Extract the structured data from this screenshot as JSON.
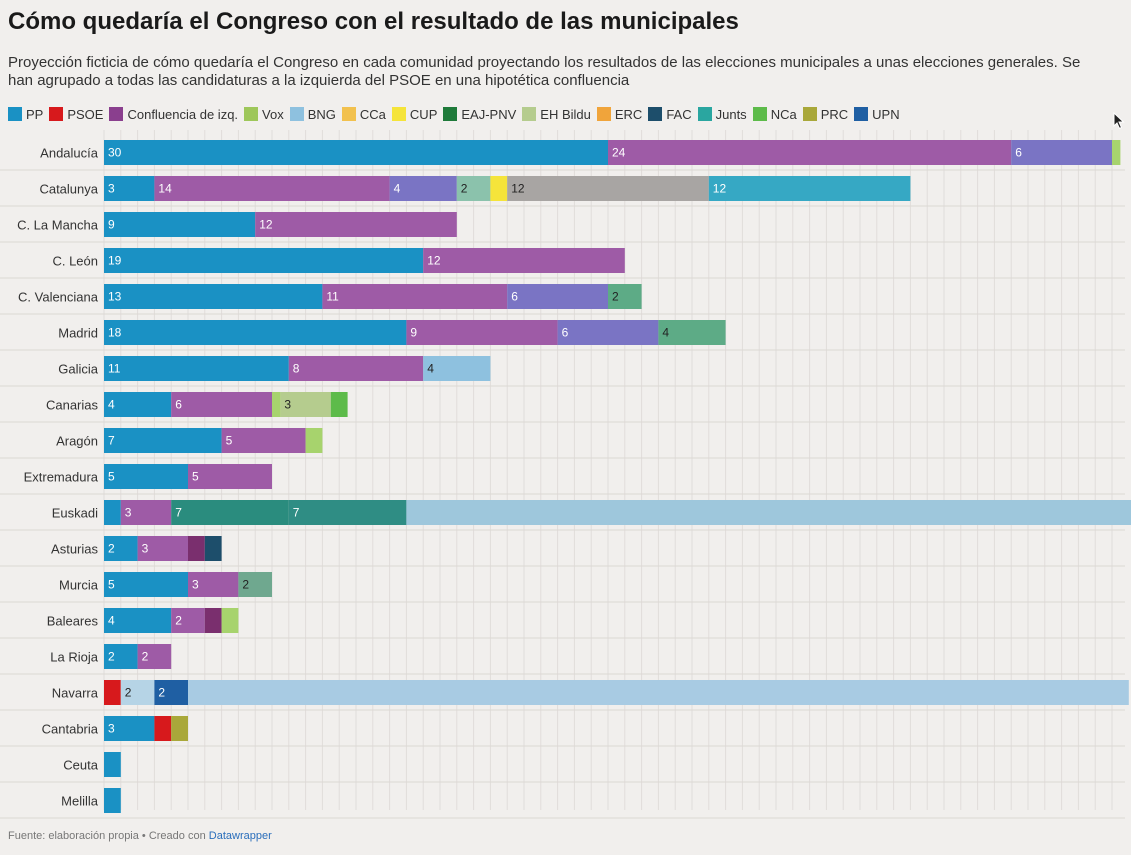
{
  "chart_data": {
    "type": "bar",
    "orientation": "horizontal",
    "stacked": true,
    "title": "Cómo quedaría el Congreso con el resultado de las municipales",
    "subtitle": "Proyección ficticia de cómo quedaría el Congreso en cada comunidad proyectando los resultados de las elecciones municipales a unas elecciones generales. Se han agrupado a todas las candidaturas a la izquierda del PSOE en una hipotética confluencia",
    "legend_position": "top",
    "grid": true,
    "series": [
      {
        "name": "PP",
        "color": "#1a91c4"
      },
      {
        "name": "PSOE",
        "color": "#d7191c"
      },
      {
        "name": "Confluencia de izq.",
        "color": "#8a3f8e"
      },
      {
        "name": "Vox",
        "color": "#9ec75a"
      },
      {
        "name": "BNG",
        "color": "#8ec1df"
      },
      {
        "name": "CCa",
        "color": "#f2c14e"
      },
      {
        "name": "CUP",
        "color": "#f5e43a"
      },
      {
        "name": "EAJ-PNV",
        "color": "#1f7a3a"
      },
      {
        "name": "EH Bildu",
        "color": "#b5cc8e"
      },
      {
        "name": "ERC",
        "color": "#f0a43b"
      },
      {
        "name": "FAC",
        "color": "#1d4e6b"
      },
      {
        "name": "Junts",
        "color": "#2aa6a0"
      },
      {
        "name": "NCa",
        "color": "#5dbb4a"
      },
      {
        "name": "PRC",
        "color": "#a9a83a"
      },
      {
        "name": "UPN",
        "color": "#1f5fa3"
      }
    ],
    "bars": [
      {
        "category": "Andalucía",
        "segments": [
          {
            "color": "#1a91c4",
            "value": 30,
            "label": "30",
            "lc": "#ffffff"
          },
          {
            "color": "#9e5ba6",
            "value": 24,
            "label": "24",
            "lc": "#ffffff"
          },
          {
            "color": "#7a74c4",
            "value": 6,
            "label": "6",
            "lc": "#ffffff"
          },
          {
            "color": "#a7d36d",
            "value": 0.5,
            "label": "",
            "lc": "#ffffff"
          }
        ]
      },
      {
        "category": "Catalunya",
        "segments": [
          {
            "color": "#1a91c4",
            "value": 3,
            "label": "3",
            "lc": "#ffffff"
          },
          {
            "color": "#9e5ba6",
            "value": 14,
            "label": "14",
            "lc": "#ffffff"
          },
          {
            "color": "#7a74c4",
            "value": 4,
            "label": "4",
            "lc": "#ffffff"
          },
          {
            "color": "#8bc2ac",
            "value": 2,
            "label": "2",
            "lc": "#222222"
          },
          {
            "color": "#f5e43a",
            "value": 1,
            "label": "",
            "lc": "#222222"
          },
          {
            "color": "#a8a5a3",
            "value": 12,
            "label": "12",
            "lc": "#222222"
          },
          {
            "color": "#36a8c4",
            "value": 12,
            "label": "12",
            "lc": "#ffffff"
          }
        ]
      },
      {
        "category": "C. La Mancha",
        "segments": [
          {
            "color": "#1a91c4",
            "value": 9,
            "label": "9",
            "lc": "#ffffff"
          },
          {
            "color": "#9e5ba6",
            "value": 12,
            "label": "12",
            "lc": "#ffffff"
          }
        ]
      },
      {
        "category": "C. León",
        "segments": [
          {
            "color": "#1a91c4",
            "value": 19,
            "label": "19",
            "lc": "#ffffff"
          },
          {
            "color": "#9e5ba6",
            "value": 12,
            "label": "12",
            "lc": "#ffffff"
          }
        ]
      },
      {
        "category": "C. Valenciana",
        "segments": [
          {
            "color": "#1a91c4",
            "value": 13,
            "label": "13",
            "lc": "#ffffff"
          },
          {
            "color": "#9e5ba6",
            "value": 11,
            "label": "11",
            "lc": "#ffffff"
          },
          {
            "color": "#7a74c4",
            "value": 6,
            "label": "6",
            "lc": "#ffffff"
          },
          {
            "color": "#5dab86",
            "value": 2,
            "label": "2",
            "lc": "#222222"
          }
        ]
      },
      {
        "category": "Madrid",
        "segments": [
          {
            "color": "#1a91c4",
            "value": 18,
            "label": "18",
            "lc": "#ffffff"
          },
          {
            "color": "#9e5ba6",
            "value": 9,
            "label": "9",
            "lc": "#ffffff"
          },
          {
            "color": "#7a74c4",
            "value": 6,
            "label": "6",
            "lc": "#ffffff"
          },
          {
            "color": "#5dab86",
            "value": 4,
            "label": "4",
            "lc": "#222222"
          }
        ]
      },
      {
        "category": "Galicia",
        "segments": [
          {
            "color": "#1a91c4",
            "value": 11,
            "label": "11",
            "lc": "#ffffff"
          },
          {
            "color": "#9e5ba6",
            "value": 8,
            "label": "8",
            "lc": "#ffffff"
          },
          {
            "color": "#8ec1df",
            "value": 4,
            "label": "4",
            "lc": "#222222"
          }
        ]
      },
      {
        "category": "Canarias",
        "segments": [
          {
            "color": "#1a91c4",
            "value": 4,
            "label": "4",
            "lc": "#ffffff"
          },
          {
            "color": "#9e5ba6",
            "value": 6,
            "label": "6",
            "lc": "#ffffff"
          },
          {
            "color": "#a7d36d",
            "value": 0.5,
            "label": "",
            "lc": "#222222"
          },
          {
            "color": "#b5cc8e",
            "value": 3,
            "label": "3",
            "lc": "#222222"
          },
          {
            "color": "#5dbb4a",
            "value": 1,
            "label": "",
            "lc": "#222222"
          }
        ]
      },
      {
        "category": "Aragón",
        "segments": [
          {
            "color": "#1a91c4",
            "value": 7,
            "label": "7",
            "lc": "#ffffff"
          },
          {
            "color": "#9e5ba6",
            "value": 5,
            "label": "5",
            "lc": "#ffffff"
          },
          {
            "color": "#a7d36d",
            "value": 1,
            "label": "",
            "lc": "#222222"
          }
        ]
      },
      {
        "category": "Extremadura",
        "segments": [
          {
            "color": "#1a91c4",
            "value": 5,
            "label": "5",
            "lc": "#ffffff"
          },
          {
            "color": "#9e5ba6",
            "value": 5,
            "label": "5",
            "lc": "#ffffff"
          }
        ]
      },
      {
        "category": "Euskadi",
        "segments": [
          {
            "color": "#1a91c4",
            "value": 1,
            "label": "",
            "lc": "#ffffff"
          },
          {
            "color": "#9e5ba6",
            "value": 3,
            "label": "3",
            "lc": "#ffffff"
          },
          {
            "color": "#2a8c7e",
            "value": 7,
            "label": "7",
            "lc": "#ffffff"
          },
          {
            "color": "#2f8d84",
            "value": 7,
            "label": "7",
            "lc": "#ffffff"
          },
          {
            "color": "#9ec7dc",
            "value": 43.5,
            "label": "",
            "lc": "#222222"
          }
        ]
      },
      {
        "category": "Asturias",
        "segments": [
          {
            "color": "#1a91c4",
            "value": 2,
            "label": "2",
            "lc": "#ffffff"
          },
          {
            "color": "#9e5ba6",
            "value": 3,
            "label": "3",
            "lc": "#ffffff"
          },
          {
            "color": "#7a2f6e",
            "value": 1,
            "label": "",
            "lc": "#ffffff"
          },
          {
            "color": "#1d4e6b",
            "value": 1,
            "label": "",
            "lc": "#ffffff"
          }
        ]
      },
      {
        "category": "Murcia",
        "segments": [
          {
            "color": "#1a91c4",
            "value": 5,
            "label": "5",
            "lc": "#ffffff"
          },
          {
            "color": "#9e5ba6",
            "value": 3,
            "label": "3",
            "lc": "#ffffff"
          },
          {
            "color": "#6fa88f",
            "value": 2,
            "label": "2",
            "lc": "#222222"
          }
        ]
      },
      {
        "category": "Baleares",
        "segments": [
          {
            "color": "#1a91c4",
            "value": 4,
            "label": "4",
            "lc": "#ffffff"
          },
          {
            "color": "#9e5ba6",
            "value": 2,
            "label": "2",
            "lc": "#ffffff"
          },
          {
            "color": "#7a2f6e",
            "value": 1,
            "label": "",
            "lc": "#ffffff"
          },
          {
            "color": "#a7d36d",
            "value": 1,
            "label": "",
            "lc": "#222222"
          }
        ]
      },
      {
        "category": "La Rioja",
        "segments": [
          {
            "color": "#1a91c4",
            "value": 2,
            "label": "2",
            "lc": "#ffffff"
          },
          {
            "color": "#9e5ba6",
            "value": 2,
            "label": "2",
            "lc": "#ffffff"
          }
        ]
      },
      {
        "category": "Navarra",
        "segments": [
          {
            "color": "#d7191c",
            "value": 1,
            "label": "",
            "lc": "#ffffff"
          },
          {
            "color": "#b6d4e6",
            "value": 2,
            "label": "2",
            "lc": "#222222"
          },
          {
            "color": "#1f5fa3",
            "value": 2,
            "label": "2",
            "lc": "#ffffff"
          },
          {
            "color": "#a8cbe3",
            "value": 56,
            "label": "",
            "lc": "#222222"
          }
        ]
      },
      {
        "category": "Cantabria",
        "segments": [
          {
            "color": "#1a91c4",
            "value": 3,
            "label": "3",
            "lc": "#ffffff"
          },
          {
            "color": "#d7191c",
            "value": 1,
            "label": "",
            "lc": "#ffffff"
          },
          {
            "color": "#a9a83a",
            "value": 1,
            "label": "",
            "lc": "#222222"
          }
        ]
      },
      {
        "category": "Ceuta",
        "segments": [
          {
            "color": "#1a91c4",
            "value": 1,
            "label": "",
            "lc": "#ffffff"
          }
        ]
      },
      {
        "category": "Melilla",
        "segments": [
          {
            "color": "#1a91c4",
            "value": 1,
            "label": "",
            "lc": "#ffffff"
          }
        ]
      }
    ]
  },
  "footer": {
    "source": "Fuente: elaboración propia • Creado con ",
    "link": "Datawrapper"
  }
}
